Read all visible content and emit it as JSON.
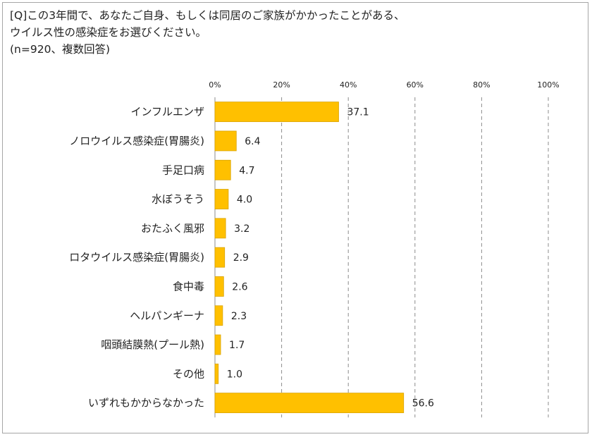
{
  "question": {
    "line1": "[Q]この3年間で、あなたご自身、もしくは同居のご家族がかかったことがある、",
    "line2": "ウイルス性の感染症をお選びください。",
    "line3": "(n=920、複数回答)"
  },
  "chart_data": {
    "type": "bar",
    "orientation": "horizontal",
    "categories": [
      "インフルエンザ",
      "ノロウイルス感染症(胃腸炎)",
      "手足口病",
      "水ぼうそう",
      "おたふく風邪",
      "ロタウイルス感染症(胃腸炎)",
      "食中毒",
      "ヘルパンギーナ",
      "咽頭結膜熱(プール熱)",
      "その他",
      "いずれもかからなかった"
    ],
    "values": [
      37.1,
      6.4,
      4.7,
      4.0,
      3.2,
      2.9,
      2.6,
      2.3,
      1.7,
      1.0,
      56.6
    ],
    "value_labels": [
      "37.1",
      "6.4",
      "4.7",
      "4.0",
      "3.2",
      "2.9",
      "2.6",
      "2.3",
      "1.7",
      "1.0",
      "56.6"
    ],
    "xlim": [
      0,
      100
    ],
    "xticks": [
      "0%",
      "20%",
      "40%",
      "60%",
      "80%",
      "100%"
    ],
    "grid": "vertical-dashed",
    "bar_color": "#ffc000",
    "bar_stroke": "#d9a300"
  }
}
